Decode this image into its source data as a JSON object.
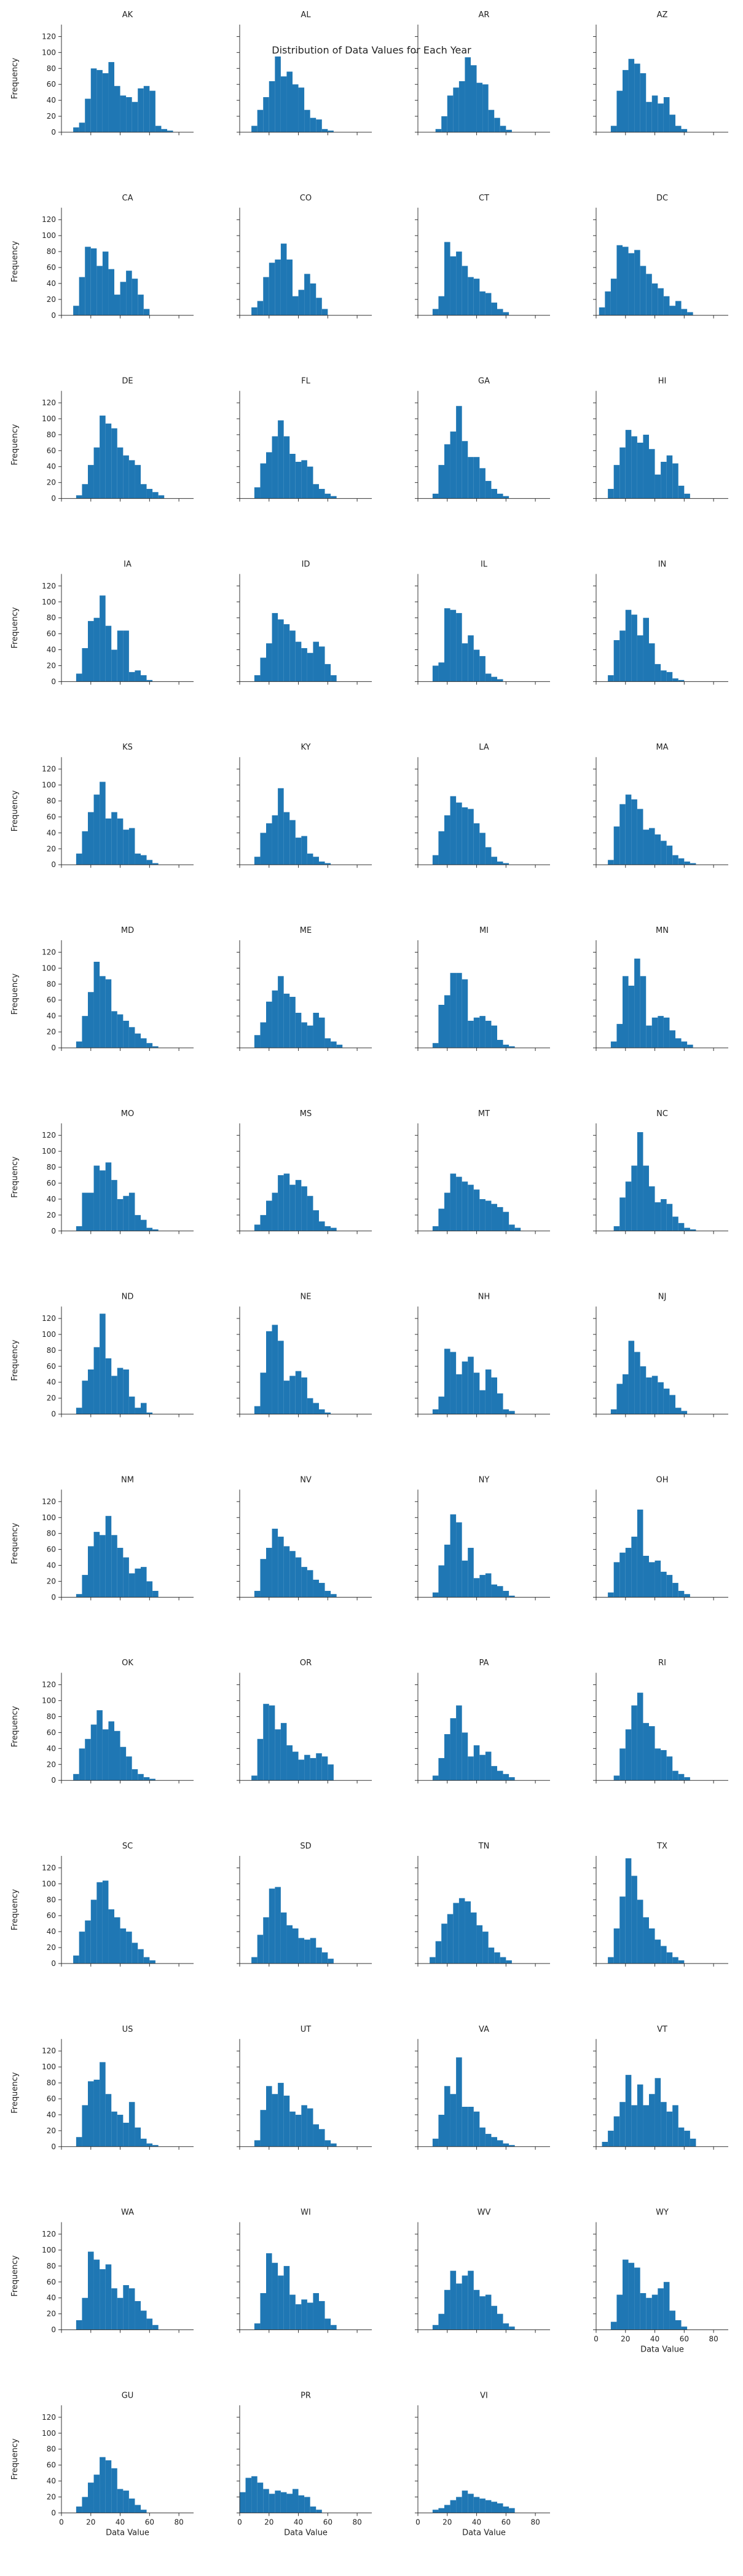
{
  "suptitle": "Distribution of Data Values for Each Year",
  "bar_color": "#1f77b4",
  "chart_data": {
    "type": "histogram-facet-grid",
    "columns": 4,
    "xlabel": "Data Value",
    "ylabel": "Frequency",
    "xlim": [
      0,
      90
    ],
    "ylim": [
      0,
      135
    ],
    "xticks": [
      0,
      20,
      40,
      60,
      80
    ],
    "yticks": [
      0,
      20,
      40,
      60,
      80,
      100,
      120
    ],
    "grid": false,
    "panels": [
      {
        "title": "AK",
        "x0": 8,
        "bin_width": 4,
        "counts": [
          6,
          12,
          42,
          80,
          78,
          74,
          88,
          58,
          46,
          44,
          38,
          55,
          58,
          52,
          8,
          4,
          2
        ]
      },
      {
        "title": "AL",
        "x0": 8,
        "bin_width": 4,
        "counts": [
          8,
          28,
          44,
          64,
          95,
          70,
          76,
          60,
          56,
          28,
          18,
          16,
          4,
          2
        ]
      },
      {
        "title": "AR",
        "x0": 12,
        "bin_width": 4,
        "counts": [
          4,
          20,
          46,
          56,
          64,
          94,
          84,
          62,
          60,
          28,
          18,
          8,
          3
        ]
      },
      {
        "title": "AZ",
        "x0": 10,
        "bin_width": 4,
        "counts": [
          8,
          52,
          78,
          92,
          86,
          74,
          38,
          46,
          36,
          44,
          22,
          8,
          4
        ]
      },
      {
        "title": "CA",
        "x0": 8,
        "bin_width": 4,
        "counts": [
          12,
          48,
          86,
          84,
          62,
          80,
          58,
          26,
          42,
          56,
          46,
          26,
          8
        ]
      },
      {
        "title": "CO",
        "x0": 8,
        "bin_width": 4,
        "counts": [
          10,
          18,
          48,
          66,
          70,
          90,
          70,
          24,
          32,
          52,
          40,
          22,
          8
        ]
      },
      {
        "title": "CT",
        "x0": 10,
        "bin_width": 4,
        "counts": [
          8,
          24,
          92,
          74,
          80,
          62,
          48,
          46,
          30,
          28,
          16,
          8,
          4
        ]
      },
      {
        "title": "DC",
        "x0": 2,
        "bin_width": 4,
        "counts": [
          10,
          30,
          46,
          88,
          86,
          78,
          82,
          62,
          52,
          40,
          34,
          24,
          12,
          18,
          8,
          4
        ]
      },
      {
        "title": "DE",
        "x0": 10,
        "bin_width": 4,
        "counts": [
          4,
          18,
          42,
          64,
          104,
          94,
          88,
          64,
          54,
          48,
          42,
          18,
          12,
          8,
          4
        ]
      },
      {
        "title": "FL",
        "x0": 10,
        "bin_width": 4,
        "counts": [
          14,
          44,
          58,
          78,
          98,
          78,
          56,
          46,
          48,
          40,
          18,
          12,
          6,
          3
        ]
      },
      {
        "title": "GA",
        "x0": 10,
        "bin_width": 4,
        "counts": [
          6,
          42,
          68,
          84,
          116,
          72,
          52,
          52,
          38,
          22,
          12,
          6,
          3
        ]
      },
      {
        "title": "HI",
        "x0": 8,
        "bin_width": 4,
        "counts": [
          12,
          42,
          64,
          86,
          78,
          70,
          80,
          62,
          30,
          46,
          54,
          44,
          16,
          6
        ]
      },
      {
        "title": "IA",
        "x0": 10,
        "bin_width": 4,
        "counts": [
          10,
          42,
          76,
          80,
          108,
          70,
          40,
          64,
          64,
          12,
          14,
          8,
          2
        ]
      },
      {
        "title": "ID",
        "x0": 10,
        "bin_width": 4,
        "counts": [
          8,
          30,
          48,
          86,
          78,
          72,
          64,
          50,
          42,
          36,
          50,
          44,
          22,
          8
        ]
      },
      {
        "title": "IL",
        "x0": 10,
        "bin_width": 4,
        "counts": [
          20,
          24,
          92,
          90,
          86,
          48,
          58,
          40,
          32,
          10,
          6,
          3
        ]
      },
      {
        "title": "IN",
        "x0": 8,
        "bin_width": 4,
        "counts": [
          8,
          52,
          64,
          90,
          84,
          58,
          80,
          48,
          22,
          14,
          12,
          4,
          2
        ]
      },
      {
        "title": "KS",
        "x0": 10,
        "bin_width": 4,
        "counts": [
          14,
          42,
          66,
          88,
          104,
          58,
          66,
          58,
          44,
          46,
          14,
          12,
          6,
          2
        ]
      },
      {
        "title": "KY",
        "x0": 10,
        "bin_width": 4,
        "counts": [
          10,
          40,
          52,
          62,
          96,
          66,
          56,
          34,
          36,
          14,
          10,
          4,
          2
        ]
      },
      {
        "title": "LA",
        "x0": 10,
        "bin_width": 4,
        "counts": [
          12,
          42,
          62,
          86,
          78,
          72,
          70,
          52,
          40,
          22,
          10,
          4,
          2
        ]
      },
      {
        "title": "MA",
        "x0": 8,
        "bin_width": 4,
        "counts": [
          6,
          48,
          76,
          88,
          82,
          70,
          44,
          46,
          38,
          30,
          24,
          12,
          8,
          4,
          2
        ]
      },
      {
        "title": "MD",
        "x0": 10,
        "bin_width": 4,
        "counts": [
          8,
          40,
          70,
          108,
          90,
          86,
          46,
          42,
          34,
          26,
          18,
          12,
          6,
          2
        ]
      },
      {
        "title": "ME",
        "x0": 10,
        "bin_width": 4,
        "counts": [
          16,
          32,
          58,
          72,
          90,
          68,
          64,
          44,
          32,
          28,
          44,
          38,
          12,
          8,
          4
        ]
      },
      {
        "title": "MI",
        "x0": 10,
        "bin_width": 4,
        "counts": [
          6,
          54,
          66,
          94,
          94,
          86,
          34,
          38,
          40,
          34,
          28,
          10,
          4,
          2
        ]
      },
      {
        "title": "MN",
        "x0": 10,
        "bin_width": 4,
        "counts": [
          8,
          30,
          90,
          78,
          112,
          90,
          28,
          38,
          40,
          38,
          22,
          12,
          8,
          4
        ]
      },
      {
        "title": "MO",
        "x0": 10,
        "bin_width": 4,
        "counts": [
          6,
          48,
          48,
          82,
          76,
          86,
          64,
          40,
          44,
          48,
          20,
          14,
          4,
          2
        ]
      },
      {
        "title": "MS",
        "x0": 10,
        "bin_width": 4,
        "counts": [
          8,
          20,
          38,
          48,
          70,
          72,
          58,
          64,
          56,
          44,
          26,
          12,
          6,
          4
        ]
      },
      {
        "title": "MT",
        "x0": 10,
        "bin_width": 4,
        "counts": [
          6,
          28,
          48,
          72,
          68,
          62,
          58,
          52,
          40,
          38,
          34,
          30,
          24,
          8,
          4
        ]
      },
      {
        "title": "NC",
        "x0": 12,
        "bin_width": 4,
        "counts": [
          6,
          42,
          62,
          82,
          124,
          82,
          56,
          36,
          40,
          34,
          18,
          10,
          4,
          2
        ]
      },
      {
        "title": "ND",
        "x0": 10,
        "bin_width": 4,
        "counts": [
          8,
          42,
          56,
          84,
          126,
          70,
          48,
          58,
          56,
          22,
          8,
          14,
          2
        ]
      },
      {
        "title": "NE",
        "x0": 10,
        "bin_width": 4,
        "counts": [
          10,
          52,
          104,
          112,
          92,
          42,
          48,
          54,
          46,
          20,
          14,
          6,
          2
        ]
      },
      {
        "title": "NH",
        "x0": 10,
        "bin_width": 4,
        "counts": [
          6,
          22,
          82,
          78,
          50,
          66,
          72,
          52,
          30,
          56,
          46,
          26,
          6,
          4
        ]
      },
      {
        "title": "NJ",
        "x0": 10,
        "bin_width": 4,
        "counts": [
          6,
          38,
          50,
          92,
          78,
          60,
          46,
          48,
          40,
          32,
          24,
          8,
          4
        ]
      },
      {
        "title": "NM",
        "x0": 10,
        "bin_width": 4,
        "counts": [
          4,
          28,
          64,
          82,
          78,
          102,
          78,
          62,
          50,
          30,
          36,
          38,
          20,
          8
        ]
      },
      {
        "title": "NV",
        "x0": 10,
        "bin_width": 4,
        "counts": [
          8,
          48,
          62,
          86,
          76,
          64,
          58,
          50,
          38,
          34,
          22,
          18,
          8,
          4
        ]
      },
      {
        "title": "NY",
        "x0": 10,
        "bin_width": 4,
        "counts": [
          6,
          40,
          66,
          104,
          94,
          46,
          62,
          24,
          28,
          30,
          16,
          14,
          8,
          2
        ]
      },
      {
        "title": "OH",
        "x0": 8,
        "bin_width": 4,
        "counts": [
          6,
          44,
          56,
          62,
          76,
          110,
          52,
          44,
          46,
          32,
          28,
          18,
          8,
          4
        ]
      },
      {
        "title": "OK",
        "x0": 8,
        "bin_width": 4,
        "counts": [
          8,
          40,
          52,
          70,
          88,
          64,
          74,
          62,
          42,
          30,
          14,
          8,
          4,
          2
        ]
      },
      {
        "title": "OR",
        "x0": 8,
        "bin_width": 4,
        "counts": [
          6,
          52,
          96,
          94,
          64,
          72,
          44,
          36,
          26,
          32,
          28,
          34,
          30,
          20
        ]
      },
      {
        "title": "PA",
        "x0": 10,
        "bin_width": 4,
        "counts": [
          6,
          28,
          58,
          78,
          94,
          60,
          30,
          44,
          32,
          36,
          18,
          12,
          8,
          4
        ]
      },
      {
        "title": "RI",
        "x0": 12,
        "bin_width": 4,
        "counts": [
          6,
          40,
          64,
          94,
          110,
          72,
          68,
          40,
          38,
          30,
          12,
          8,
          4
        ]
      },
      {
        "title": "SC",
        "x0": 8,
        "bin_width": 4,
        "counts": [
          10,
          40,
          54,
          80,
          102,
          104,
          68,
          58,
          44,
          40,
          26,
          18,
          8,
          4
        ]
      },
      {
        "title": "SD",
        "x0": 8,
        "bin_width": 4,
        "counts": [
          8,
          36,
          58,
          94,
          96,
          64,
          48,
          44,
          32,
          30,
          32,
          20,
          14,
          6
        ]
      },
      {
        "title": "TN",
        "x0": 8,
        "bin_width": 4,
        "counts": [
          8,
          28,
          50,
          62,
          76,
          82,
          78,
          64,
          48,
          40,
          20,
          14,
          8,
          4
        ]
      },
      {
        "title": "TX",
        "x0": 8,
        "bin_width": 4,
        "counts": [
          8,
          44,
          84,
          132,
          110,
          80,
          58,
          44,
          30,
          22,
          14,
          8,
          4
        ]
      },
      {
        "title": "US",
        "x0": 10,
        "bin_width": 4,
        "counts": [
          12,
          52,
          82,
          84,
          106,
          66,
          44,
          40,
          30,
          56,
          24,
          10,
          4,
          2
        ]
      },
      {
        "title": "UT",
        "x0": 10,
        "bin_width": 4,
        "counts": [
          8,
          46,
          76,
          66,
          80,
          64,
          44,
          40,
          52,
          48,
          28,
          22,
          8,
          4
        ]
      },
      {
        "title": "VA",
        "x0": 10,
        "bin_width": 4,
        "counts": [
          10,
          40,
          76,
          66,
          112,
          50,
          50,
          44,
          24,
          16,
          12,
          8,
          4,
          2
        ]
      },
      {
        "title": "VT",
        "x0": 4,
        "bin_width": 4,
        "counts": [
          6,
          20,
          38,
          56,
          90,
          52,
          78,
          52,
          66,
          86,
          56,
          44,
          52,
          24,
          20,
          10
        ]
      },
      {
        "title": "WA",
        "x0": 10,
        "bin_width": 4,
        "counts": [
          12,
          40,
          98,
          88,
          76,
          82,
          52,
          40,
          56,
          52,
          36,
          24,
          14,
          6
        ]
      },
      {
        "title": "WI",
        "x0": 10,
        "bin_width": 4,
        "counts": [
          8,
          46,
          96,
          84,
          68,
          80,
          44,
          32,
          38,
          34,
          46,
          36,
          14,
          6
        ]
      },
      {
        "title": "WV",
        "x0": 10,
        "bin_width": 4,
        "counts": [
          6,
          20,
          50,
          74,
          58,
          68,
          74,
          50,
          42,
          44,
          30,
          20,
          8,
          4
        ]
      },
      {
        "title": "WY",
        "x0": 10,
        "bin_width": 4,
        "counts": [
          10,
          44,
          88,
          84,
          78,
          46,
          40,
          44,
          52,
          60,
          24,
          12,
          4
        ]
      },
      {
        "title": "GU",
        "x0": 10,
        "bin_width": 4,
        "counts": [
          8,
          20,
          38,
          48,
          70,
          66,
          56,
          30,
          28,
          18,
          10,
          4
        ]
      },
      {
        "title": "PR",
        "x0": 0,
        "bin_width": 4,
        "counts": [
          26,
          44,
          46,
          38,
          30,
          24,
          28,
          26,
          24,
          30,
          22,
          20,
          8,
          4
        ]
      },
      {
        "title": "VI",
        "x0": 10,
        "bin_width": 4,
        "counts": [
          4,
          6,
          10,
          16,
          20,
          28,
          24,
          20,
          18,
          16,
          14,
          12,
          8,
          6
        ]
      }
    ]
  }
}
